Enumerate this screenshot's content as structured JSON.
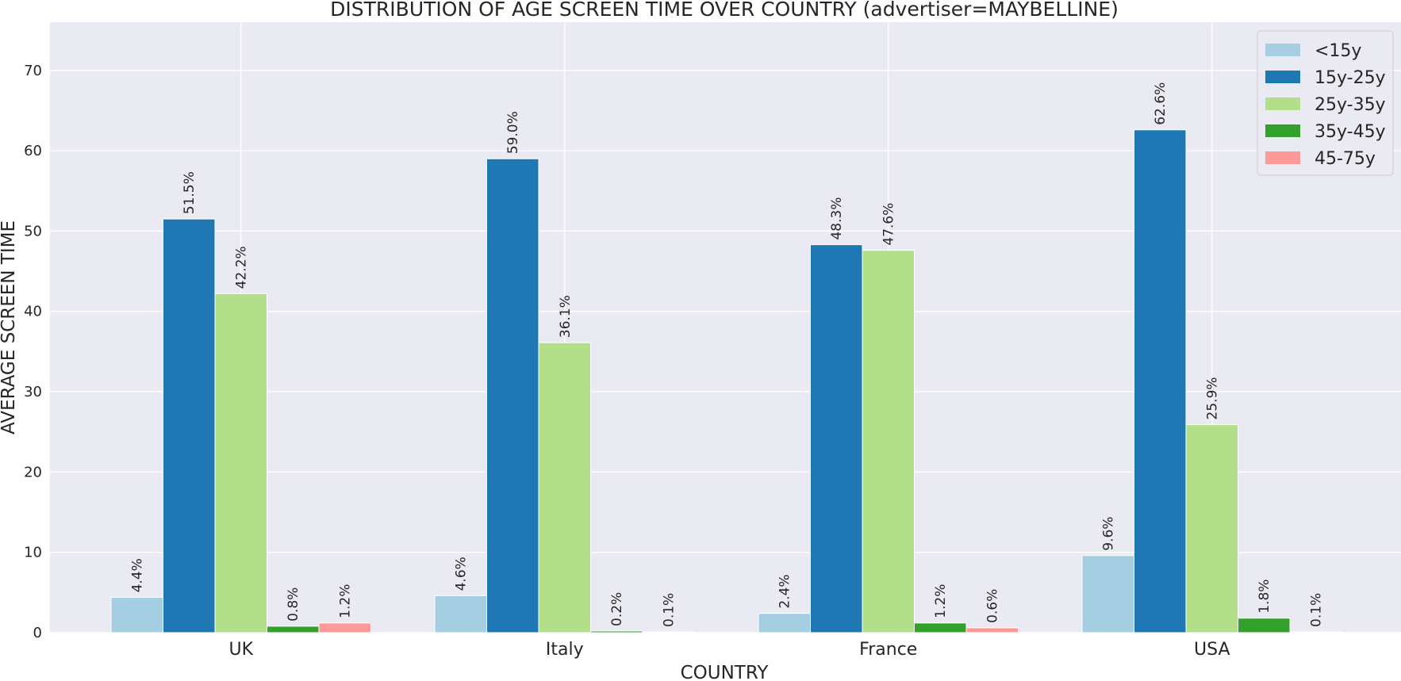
{
  "chart_data": {
    "type": "bar",
    "title": "DISTRIBUTION OF AGE SCREEN TIME OVER COUNTRY (advertiser=MAYBELLINE)",
    "xlabel": "COUNTRY",
    "ylabel": "AVERAGE SCREEN TIME",
    "categories": [
      "UK",
      "Italy",
      "France",
      "USA"
    ],
    "ylim": [
      0,
      76
    ],
    "yticks": [
      0,
      10,
      20,
      30,
      40,
      50,
      60,
      70
    ],
    "grid": true,
    "legend_position": "top-right",
    "series": [
      {
        "name": "<15y",
        "color": "#a6cee3",
        "values": [
          4.4,
          4.6,
          2.4,
          9.6
        ],
        "labels": [
          "4.4%",
          "4.6%",
          "2.4%",
          "9.6%"
        ]
      },
      {
        "name": "15y-25y",
        "color": "#1f78b4",
        "values": [
          51.5,
          59.0,
          48.3,
          62.6
        ],
        "labels": [
          "51.5%",
          "59.0%",
          "48.3%",
          "62.6%"
        ]
      },
      {
        "name": "25y-35y",
        "color": "#b2df8a",
        "values": [
          42.2,
          36.1,
          47.6,
          25.9
        ],
        "labels": [
          "42.2%",
          "36.1%",
          "47.6%",
          "25.9%"
        ]
      },
      {
        "name": "35y-45y",
        "color": "#33a02c",
        "values": [
          0.8,
          0.2,
          1.2,
          1.8
        ],
        "labels": [
          "0.8%",
          "0.2%",
          "1.2%",
          "1.8%"
        ]
      },
      {
        "name": "45-75y",
        "color": "#fb9a99",
        "values": [
          1.2,
          0.1,
          0.6,
          0.1
        ],
        "labels": [
          "1.2%",
          "0.1%",
          "0.6%",
          "0.1%"
        ]
      }
    ]
  }
}
